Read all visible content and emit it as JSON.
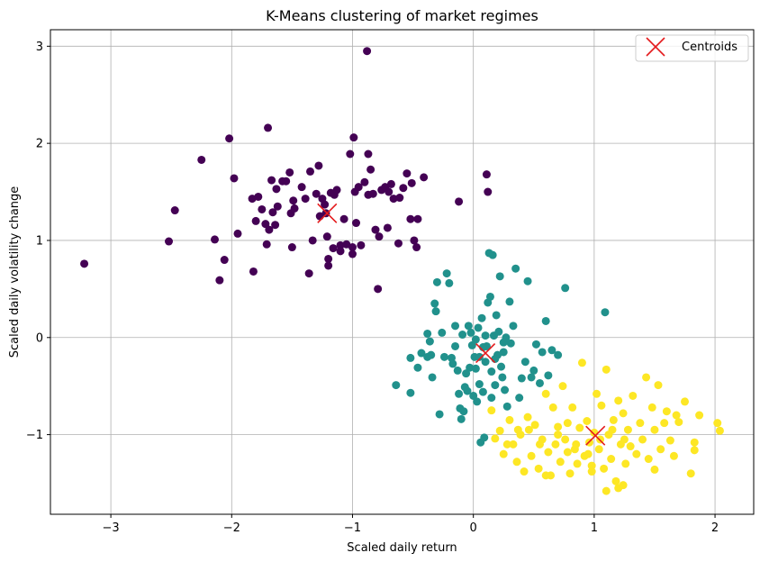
{
  "chart_data": {
    "type": "scatter",
    "title": "K-Means clustering of market regimes",
    "xlabel": "Scaled daily return",
    "ylabel": "Scaled daily volatility change",
    "xlim": [
      -3.5,
      2.32
    ],
    "ylim": [
      -1.82,
      3.17
    ],
    "xticks": [
      -3,
      -2,
      -1,
      0,
      1,
      2
    ],
    "yticks": [
      -1,
      0,
      1,
      2,
      3
    ],
    "xtick_labels": [
      "−3",
      "−2",
      "−1",
      "0",
      "1",
      "2"
    ],
    "ytick_labels": [
      "−1",
      "0",
      "1",
      "2",
      "3"
    ],
    "grid": true,
    "legend": {
      "position": "top-right",
      "entries": [
        "Centroids"
      ]
    },
    "colors": {
      "cluster_0": "#440154",
      "cluster_1": "#21918c",
      "cluster_2": "#fde725",
      "centroid": "#e41a1c"
    },
    "series": [
      {
        "cluster": 0,
        "points": [
          [
            -3.22,
            0.76
          ],
          [
            -2.52,
            0.99
          ],
          [
            -2.47,
            1.31
          ],
          [
            -2.25,
            1.83
          ],
          [
            -2.14,
            1.01
          ],
          [
            -2.1,
            0.59
          ],
          [
            -2.06,
            0.8
          ],
          [
            -2.02,
            2.05
          ],
          [
            -1.98,
            1.64
          ],
          [
            -1.95,
            1.07
          ],
          [
            -1.83,
            1.43
          ],
          [
            -1.82,
            0.68
          ],
          [
            -1.8,
            1.2
          ],
          [
            -1.78,
            1.45
          ],
          [
            -1.75,
            1.32
          ],
          [
            -1.72,
            1.17
          ],
          [
            -1.71,
            0.96
          ],
          [
            -1.7,
            2.16
          ],
          [
            -1.69,
            1.11
          ],
          [
            -1.67,
            1.62
          ],
          [
            -1.66,
            1.29
          ],
          [
            -1.64,
            1.16
          ],
          [
            -1.63,
            1.53
          ],
          [
            -1.62,
            1.35
          ],
          [
            -1.58,
            1.61
          ],
          [
            -1.55,
            1.61
          ],
          [
            -1.52,
            1.7
          ],
          [
            -1.51,
            1.28
          ],
          [
            -1.49,
            1.41
          ],
          [
            -1.48,
            1.33
          ],
          [
            -1.5,
            0.93
          ],
          [
            -1.42,
            1.55
          ],
          [
            -1.39,
            1.43
          ],
          [
            -1.36,
            0.66
          ],
          [
            -1.35,
            1.71
          ],
          [
            -1.33,
            1.0
          ],
          [
            -1.3,
            1.48
          ],
          [
            -1.28,
            1.77
          ],
          [
            -1.27,
            1.25
          ],
          [
            -1.25,
            1.43
          ],
          [
            -1.23,
            1.37
          ],
          [
            -1.22,
            1.28
          ],
          [
            -1.21,
            1.04
          ],
          [
            -1.2,
            0.81
          ],
          [
            -1.2,
            0.74
          ],
          [
            -1.18,
            1.49
          ],
          [
            -1.16,
            0.92
          ],
          [
            -1.15,
            1.47
          ],
          [
            -1.13,
            1.52
          ],
          [
            -1.1,
            0.95
          ],
          [
            -1.1,
            0.89
          ],
          [
            -1.07,
            1.22
          ],
          [
            -1.05,
            0.96
          ],
          [
            -1.02,
            1.89
          ],
          [
            -1.0,
            0.93
          ],
          [
            -1.0,
            0.86
          ],
          [
            -0.99,
            2.06
          ],
          [
            -0.98,
            1.5
          ],
          [
            -0.97,
            1.18
          ],
          [
            -0.95,
            1.55
          ],
          [
            -0.93,
            0.95
          ],
          [
            -0.9,
            1.6
          ],
          [
            -0.88,
            2.95
          ],
          [
            -0.87,
            1.89
          ],
          [
            -0.87,
            1.47
          ],
          [
            -0.85,
            1.73
          ],
          [
            -0.83,
            1.48
          ],
          [
            -0.81,
            1.11
          ],
          [
            -0.79,
            0.5
          ],
          [
            -0.78,
            1.04
          ],
          [
            -0.76,
            1.52
          ],
          [
            -0.73,
            1.55
          ],
          [
            -0.71,
            1.13
          ],
          [
            -0.7,
            1.5
          ],
          [
            -0.68,
            1.58
          ],
          [
            -0.66,
            1.43
          ],
          [
            -0.62,
            0.97
          ],
          [
            -0.61,
            1.44
          ],
          [
            -0.58,
            1.54
          ],
          [
            -0.55,
            1.69
          ],
          [
            -0.52,
            1.22
          ],
          [
            -0.51,
            1.59
          ],
          [
            -0.49,
            1.0
          ],
          [
            -0.47,
            0.93
          ],
          [
            -0.46,
            1.22
          ],
          [
            -0.41,
            1.65
          ],
          [
            -0.12,
            1.4
          ],
          [
            0.11,
            1.68
          ],
          [
            0.12,
            1.5
          ]
        ]
      },
      {
        "cluster": 1,
        "points": [
          [
            -0.64,
            -0.49
          ],
          [
            -0.52,
            -0.57
          ],
          [
            -0.52,
            -0.21
          ],
          [
            -0.46,
            -0.31
          ],
          [
            -0.43,
            -0.16
          ],
          [
            -0.38,
            0.04
          ],
          [
            -0.36,
            -0.04
          ],
          [
            -0.35,
            -0.18
          ],
          [
            -0.34,
            -0.41
          ],
          [
            -0.32,
            0.35
          ],
          [
            -0.31,
            0.27
          ],
          [
            -0.3,
            0.57
          ],
          [
            -0.28,
            -0.79
          ],
          [
            -0.26,
            0.05
          ],
          [
            -0.24,
            -0.2
          ],
          [
            -0.22,
            0.66
          ],
          [
            -0.2,
            0.56
          ],
          [
            -0.18,
            -0.21
          ],
          [
            -0.17,
            -0.27
          ],
          [
            -0.15,
            0.12
          ],
          [
            -0.15,
            -0.09
          ],
          [
            -0.13,
            -0.34
          ],
          [
            -0.12,
            -0.58
          ],
          [
            -0.11,
            -0.73
          ],
          [
            -0.1,
            -0.84
          ],
          [
            -0.09,
            0.03
          ],
          [
            -0.08,
            -0.76
          ],
          [
            -0.07,
            -0.51
          ],
          [
            -0.06,
            -0.37
          ],
          [
            -0.05,
            -0.55
          ],
          [
            -0.04,
            0.12
          ],
          [
            -0.03,
            -0.31
          ],
          [
            -0.02,
            0.05
          ],
          [
            -0.01,
            -0.08
          ],
          [
            0.0,
            -0.6
          ],
          [
            0.01,
            -0.2
          ],
          [
            0.02,
            -0.32
          ],
          [
            0.03,
            -0.66
          ],
          [
            0.04,
            0.1
          ],
          [
            0.05,
            -0.48
          ],
          [
            0.06,
            -1.08
          ],
          [
            0.07,
            0.2
          ],
          [
            0.08,
            -0.56
          ],
          [
            0.09,
            -1.03
          ],
          [
            0.1,
            -0.25
          ],
          [
            0.11,
            -0.09
          ],
          [
            0.12,
            0.36
          ],
          [
            0.13,
            0.87
          ],
          [
            0.14,
            0.42
          ],
          [
            0.15,
            -0.62
          ],
          [
            0.16,
            0.85
          ],
          [
            0.17,
            0.02
          ],
          [
            0.18,
            -0.49
          ],
          [
            0.19,
            0.23
          ],
          [
            0.2,
            -0.18
          ],
          [
            0.21,
            0.06
          ],
          [
            0.22,
            0.63
          ],
          [
            0.23,
            -0.3
          ],
          [
            0.24,
            -0.41
          ],
          [
            0.25,
            -0.15
          ],
          [
            0.26,
            -0.54
          ],
          [
            0.27,
            0.0
          ],
          [
            0.28,
            -0.71
          ],
          [
            0.3,
            0.37
          ],
          [
            0.31,
            -0.06
          ],
          [
            0.33,
            0.12
          ],
          [
            0.35,
            0.71
          ],
          [
            0.38,
            -0.62
          ],
          [
            0.4,
            -0.42
          ],
          [
            0.43,
            -0.25
          ],
          [
            0.45,
            0.58
          ],
          [
            0.48,
            -0.41
          ],
          [
            0.5,
            -0.34
          ],
          [
            0.52,
            -0.07
          ],
          [
            0.55,
            -0.47
          ],
          [
            0.57,
            -0.15
          ],
          [
            0.6,
            0.17
          ],
          [
            0.62,
            -0.39
          ],
          [
            0.65,
            -0.13
          ],
          [
            0.7,
            -0.18
          ],
          [
            0.76,
            0.51
          ],
          [
            1.09,
            0.26
          ],
          [
            -0.38,
            -0.2
          ],
          [
            0.05,
            -0.2
          ],
          [
            0.02,
            -0.02
          ],
          [
            0.08,
            -0.1
          ],
          [
            0.15,
            -0.35
          ],
          [
            0.1,
            0.02
          ],
          [
            0.25,
            -0.05
          ],
          [
            0.18,
            -0.22
          ]
        ]
      },
      {
        "cluster": 2,
        "points": [
          [
            0.15,
            -0.75
          ],
          [
            0.18,
            -1.04
          ],
          [
            0.22,
            -0.96
          ],
          [
            0.25,
            -1.2
          ],
          [
            0.28,
            -1.1
          ],
          [
            0.3,
            -0.85
          ],
          [
            0.33,
            -1.1
          ],
          [
            0.36,
            -1.28
          ],
          [
            0.39,
            -1.0
          ],
          [
            0.42,
            -1.38
          ],
          [
            0.45,
            -0.82
          ],
          [
            0.48,
            -1.22
          ],
          [
            0.51,
            -0.9
          ],
          [
            0.54,
            -1.35
          ],
          [
            0.57,
            -1.05
          ],
          [
            0.6,
            -0.58
          ],
          [
            0.62,
            -1.18
          ],
          [
            0.64,
            -1.42
          ],
          [
            0.66,
            -0.72
          ],
          [
            0.68,
            -1.1
          ],
          [
            0.7,
            -0.92
          ],
          [
            0.72,
            -1.28
          ],
          [
            0.74,
            -0.5
          ],
          [
            0.76,
            -1.05
          ],
          [
            0.78,
            -0.88
          ],
          [
            0.8,
            -1.4
          ],
          [
            0.82,
            -0.72
          ],
          [
            0.84,
            -1.15
          ],
          [
            0.86,
            -1.3
          ],
          [
            0.88,
            -0.93
          ],
          [
            0.9,
            -0.26
          ],
          [
            0.92,
            -1.22
          ],
          [
            0.94,
            -0.86
          ],
          [
            0.96,
            -1.08
          ],
          [
            0.98,
            -1.32
          ],
          [
            1.0,
            -0.98
          ],
          [
            1.02,
            -0.58
          ],
          [
            1.04,
            -1.15
          ],
          [
            1.06,
            -0.7
          ],
          [
            1.08,
            -1.35
          ],
          [
            1.1,
            -0.33
          ],
          [
            1.12,
            -1.0
          ],
          [
            1.14,
            -1.25
          ],
          [
            1.16,
            -0.85
          ],
          [
            1.18,
            -1.48
          ],
          [
            1.2,
            -0.65
          ],
          [
            1.22,
            -1.1
          ],
          [
            1.24,
            -0.78
          ],
          [
            1.26,
            -1.3
          ],
          [
            1.28,
            -0.95
          ],
          [
            1.3,
            -1.12
          ],
          [
            1.32,
            -0.6
          ],
          [
            1.35,
            -1.2
          ],
          [
            1.38,
            -0.88
          ],
          [
            1.4,
            -1.05
          ],
          [
            1.43,
            -0.41
          ],
          [
            1.45,
            -1.25
          ],
          [
            1.48,
            -0.72
          ],
          [
            1.5,
            -0.95
          ],
          [
            1.53,
            -0.49
          ],
          [
            1.55,
            -1.15
          ],
          [
            1.58,
            -0.88
          ],
          [
            1.6,
            -0.76
          ],
          [
            1.63,
            -1.06
          ],
          [
            1.66,
            -1.22
          ],
          [
            1.7,
            -0.87
          ],
          [
            1.75,
            -0.66
          ],
          [
            1.8,
            -1.4
          ],
          [
            1.83,
            -1.08
          ],
          [
            1.87,
            -0.8
          ],
          [
            2.02,
            -0.88
          ],
          [
            2.04,
            -0.96
          ],
          [
            1.83,
            -1.16
          ],
          [
            1.5,
            -1.36
          ],
          [
            1.2,
            -1.55
          ],
          [
            1.1,
            -1.58
          ],
          [
            1.24,
            -1.52
          ],
          [
            0.37,
            -0.95
          ],
          [
            0.55,
            -1.1
          ],
          [
            0.7,
            -1.0
          ],
          [
            0.85,
            -1.1
          ],
          [
            0.95,
            -1.2
          ],
          [
            1.05,
            -1.05
          ],
          [
            1.15,
            -0.95
          ],
          [
            0.98,
            -1.38
          ],
          [
            0.78,
            -1.18
          ],
          [
            1.25,
            -1.05
          ],
          [
            0.6,
            -1.42
          ],
          [
            0.46,
            -0.95
          ],
          [
            1.68,
            -0.8
          ]
        ]
      }
    ],
    "centroids": [
      [
        -1.21,
        1.28
      ],
      [
        0.1,
        -0.16
      ],
      [
        1.01,
        -1.01
      ]
    ]
  }
}
